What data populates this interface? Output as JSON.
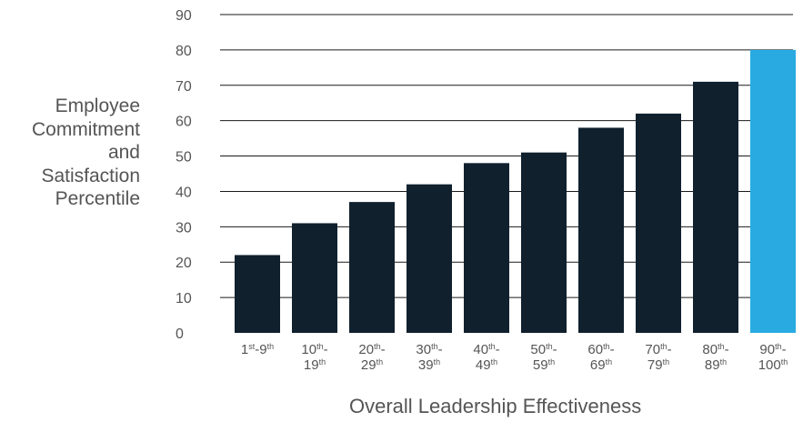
{
  "chart_data": {
    "type": "bar",
    "title": "",
    "xlabel": "Overall Leadership Effectiveness",
    "ylabel_lines": [
      "Employee",
      "Commitment",
      "and",
      "Satisfaction",
      "Percentile"
    ],
    "ylim": [
      0,
      90
    ],
    "yticks": [
      0,
      10,
      20,
      30,
      40,
      50,
      60,
      70,
      80,
      90
    ],
    "grid": true,
    "categories": [
      {
        "a": "1",
        "a_sup": "st",
        "b": "-9",
        "b_sup": "th",
        "line2": "",
        "line2_sup": ""
      },
      {
        "a": "10",
        "a_sup": "th",
        "b": "-",
        "b_sup": "",
        "line2": "19",
        "line2_sup": "th"
      },
      {
        "a": "20",
        "a_sup": "th",
        "b": "-",
        "b_sup": "",
        "line2": "29",
        "line2_sup": "th"
      },
      {
        "a": "30",
        "a_sup": "th",
        "b": "-",
        "b_sup": "",
        "line2": "39",
        "line2_sup": "th"
      },
      {
        "a": "40",
        "a_sup": "th",
        "b": "-",
        "b_sup": "",
        "line2": "49",
        "line2_sup": "th"
      },
      {
        "a": "50",
        "a_sup": "th",
        "b": "-",
        "b_sup": "",
        "line2": "59",
        "line2_sup": "th"
      },
      {
        "a": "60",
        "a_sup": "th",
        "b": "-",
        "b_sup": "",
        "line2": "69",
        "line2_sup": "th"
      },
      {
        "a": "70",
        "a_sup": "th",
        "b": "-",
        "b_sup": "",
        "line2": "79",
        "line2_sup": "th"
      },
      {
        "a": "80",
        "a_sup": "th",
        "b": "-",
        "b_sup": "",
        "line2": "89",
        "line2_sup": "th"
      },
      {
        "a": "90",
        "a_sup": "th",
        "b": "-",
        "b_sup": "",
        "line2": "100",
        "line2_sup": "th"
      }
    ],
    "values": [
      22,
      31,
      37,
      42,
      48,
      51,
      58,
      62,
      71,
      80
    ],
    "bar_color": "#10202d",
    "highlight_color": "#29abe2",
    "highlight_index": 9,
    "grid_color": "#1a1a1a"
  }
}
